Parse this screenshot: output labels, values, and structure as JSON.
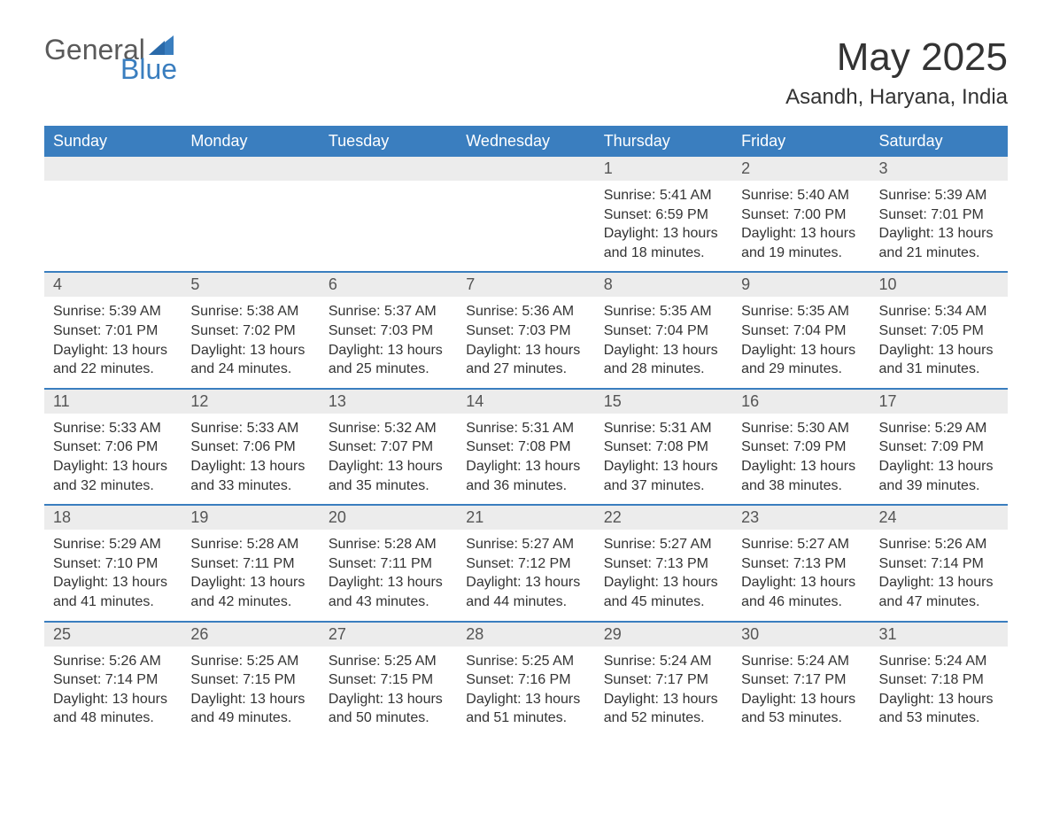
{
  "logo": {
    "text1": "General",
    "text2": "Blue",
    "accent_color": "#3a7ebf",
    "text_color": "#5a5a5a"
  },
  "title": "May 2025",
  "location": "Asandh, Haryana, India",
  "colors": {
    "header_bg": "#3a7ebf",
    "header_text": "#ffffff",
    "day_number_bg": "#ececec",
    "row_border": "#3a7ebf",
    "body_text": "#333333"
  },
  "day_headers": [
    "Sunday",
    "Monday",
    "Tuesday",
    "Wednesday",
    "Thursday",
    "Friday",
    "Saturday"
  ],
  "weeks": [
    [
      null,
      null,
      null,
      null,
      {
        "n": "1",
        "sunrise": "5:41 AM",
        "sunset": "6:59 PM",
        "daylight": "13 hours and 18 minutes."
      },
      {
        "n": "2",
        "sunrise": "5:40 AM",
        "sunset": "7:00 PM",
        "daylight": "13 hours and 19 minutes."
      },
      {
        "n": "3",
        "sunrise": "5:39 AM",
        "sunset": "7:01 PM",
        "daylight": "13 hours and 21 minutes."
      }
    ],
    [
      {
        "n": "4",
        "sunrise": "5:39 AM",
        "sunset": "7:01 PM",
        "daylight": "13 hours and 22 minutes."
      },
      {
        "n": "5",
        "sunrise": "5:38 AM",
        "sunset": "7:02 PM",
        "daylight": "13 hours and 24 minutes."
      },
      {
        "n": "6",
        "sunrise": "5:37 AM",
        "sunset": "7:03 PM",
        "daylight": "13 hours and 25 minutes."
      },
      {
        "n": "7",
        "sunrise": "5:36 AM",
        "sunset": "7:03 PM",
        "daylight": "13 hours and 27 minutes."
      },
      {
        "n": "8",
        "sunrise": "5:35 AM",
        "sunset": "7:04 PM",
        "daylight": "13 hours and 28 minutes."
      },
      {
        "n": "9",
        "sunrise": "5:35 AM",
        "sunset": "7:04 PM",
        "daylight": "13 hours and 29 minutes."
      },
      {
        "n": "10",
        "sunrise": "5:34 AM",
        "sunset": "7:05 PM",
        "daylight": "13 hours and 31 minutes."
      }
    ],
    [
      {
        "n": "11",
        "sunrise": "5:33 AM",
        "sunset": "7:06 PM",
        "daylight": "13 hours and 32 minutes."
      },
      {
        "n": "12",
        "sunrise": "5:33 AM",
        "sunset": "7:06 PM",
        "daylight": "13 hours and 33 minutes."
      },
      {
        "n": "13",
        "sunrise": "5:32 AM",
        "sunset": "7:07 PM",
        "daylight": "13 hours and 35 minutes."
      },
      {
        "n": "14",
        "sunrise": "5:31 AM",
        "sunset": "7:08 PM",
        "daylight": "13 hours and 36 minutes."
      },
      {
        "n": "15",
        "sunrise": "5:31 AM",
        "sunset": "7:08 PM",
        "daylight": "13 hours and 37 minutes."
      },
      {
        "n": "16",
        "sunrise": "5:30 AM",
        "sunset": "7:09 PM",
        "daylight": "13 hours and 38 minutes."
      },
      {
        "n": "17",
        "sunrise": "5:29 AM",
        "sunset": "7:09 PM",
        "daylight": "13 hours and 39 minutes."
      }
    ],
    [
      {
        "n": "18",
        "sunrise": "5:29 AM",
        "sunset": "7:10 PM",
        "daylight": "13 hours and 41 minutes."
      },
      {
        "n": "19",
        "sunrise": "5:28 AM",
        "sunset": "7:11 PM",
        "daylight": "13 hours and 42 minutes."
      },
      {
        "n": "20",
        "sunrise": "5:28 AM",
        "sunset": "7:11 PM",
        "daylight": "13 hours and 43 minutes."
      },
      {
        "n": "21",
        "sunrise": "5:27 AM",
        "sunset": "7:12 PM",
        "daylight": "13 hours and 44 minutes."
      },
      {
        "n": "22",
        "sunrise": "5:27 AM",
        "sunset": "7:13 PM",
        "daylight": "13 hours and 45 minutes."
      },
      {
        "n": "23",
        "sunrise": "5:27 AM",
        "sunset": "7:13 PM",
        "daylight": "13 hours and 46 minutes."
      },
      {
        "n": "24",
        "sunrise": "5:26 AM",
        "sunset": "7:14 PM",
        "daylight": "13 hours and 47 minutes."
      }
    ],
    [
      {
        "n": "25",
        "sunrise": "5:26 AM",
        "sunset": "7:14 PM",
        "daylight": "13 hours and 48 minutes."
      },
      {
        "n": "26",
        "sunrise": "5:25 AM",
        "sunset": "7:15 PM",
        "daylight": "13 hours and 49 minutes."
      },
      {
        "n": "27",
        "sunrise": "5:25 AM",
        "sunset": "7:15 PM",
        "daylight": "13 hours and 50 minutes."
      },
      {
        "n": "28",
        "sunrise": "5:25 AM",
        "sunset": "7:16 PM",
        "daylight": "13 hours and 51 minutes."
      },
      {
        "n": "29",
        "sunrise": "5:24 AM",
        "sunset": "7:17 PM",
        "daylight": "13 hours and 52 minutes."
      },
      {
        "n": "30",
        "sunrise": "5:24 AM",
        "sunset": "7:17 PM",
        "daylight": "13 hours and 53 minutes."
      },
      {
        "n": "31",
        "sunrise": "5:24 AM",
        "sunset": "7:18 PM",
        "daylight": "13 hours and 53 minutes."
      }
    ]
  ],
  "labels": {
    "sunrise": "Sunrise: ",
    "sunset": "Sunset: ",
    "daylight": "Daylight: "
  }
}
